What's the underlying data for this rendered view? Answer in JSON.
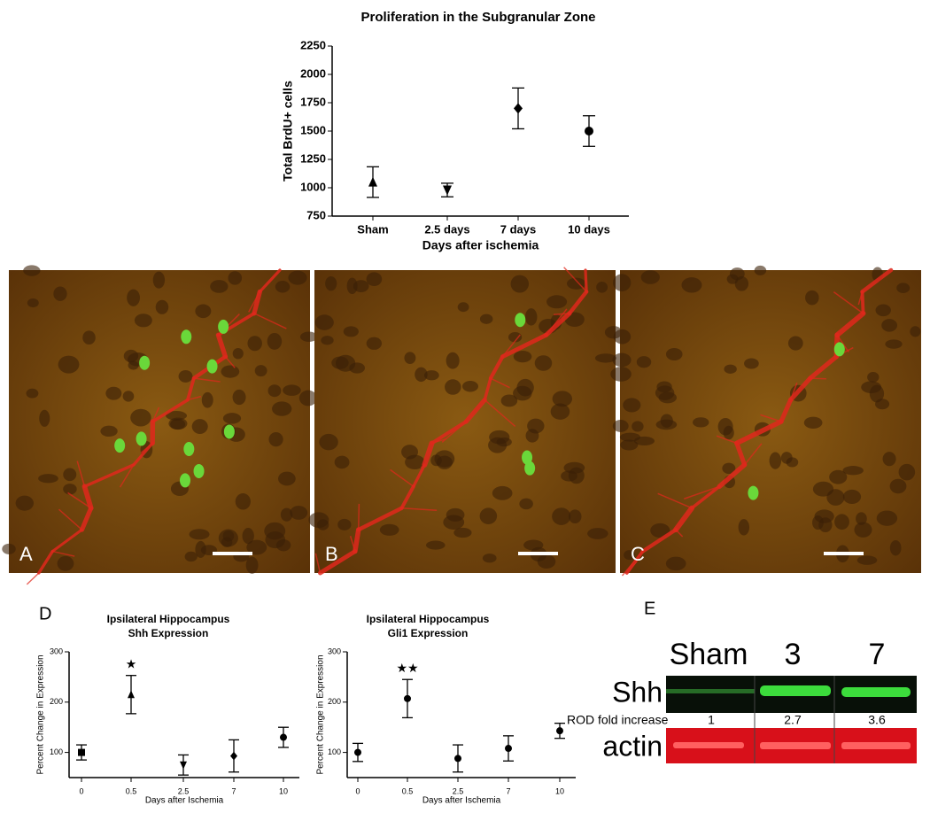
{
  "chart_data": [
    {
      "type": "errorbar",
      "title": "Proliferation in the Subgranular Zone",
      "xlabel": "Days after ischemia",
      "ylabel": "Total BrdU+ cells",
      "categories": [
        "Sham",
        "2.5 days",
        "7 days",
        "10 days"
      ],
      "values": [
        1050,
        980,
        1700,
        1500
      ],
      "errors": [
        135,
        60,
        180,
        135
      ],
      "markers": [
        "triangle",
        "triangle-down",
        "diamond",
        "circle"
      ],
      "color": "#000000",
      "ylim": [
        750,
        2250
      ],
      "yticks": [
        750,
        1000,
        1250,
        1500,
        1750,
        2000,
        2250
      ]
    },
    {
      "type": "errorbar",
      "title": [
        "Ipsilateral Hippocampus",
        "Shh Expression"
      ],
      "xlabel": "Days after Ischemia",
      "ylabel": "Percent Change in Expression",
      "categories": [
        "0",
        "0.5",
        "2.5",
        "7",
        "10"
      ],
      "values": [
        100,
        215,
        75,
        93,
        130
      ],
      "errors": [
        15,
        38,
        20,
        32,
        20
      ],
      "markers": [
        "square",
        "triangle",
        "triangle-down",
        "diamond",
        "circle"
      ],
      "color": "#000000",
      "ylim": [
        50,
        300
      ],
      "yticks": [
        100,
        200,
        300
      ],
      "annotations": [
        {
          "category": 1,
          "text": "★"
        }
      ]
    },
    {
      "type": "errorbar",
      "title": [
        "Ipsilateral Hippocampus",
        "Gli1 Expression"
      ],
      "xlabel": "Days after Ischemia",
      "ylabel": "Percent Change in Expression",
      "categories": [
        "0",
        "0.5",
        "2.5",
        "7",
        "10"
      ],
      "values": [
        100,
        207,
        88,
        108,
        143
      ],
      "errors": [
        18,
        38,
        27,
        25,
        15
      ],
      "markers": [
        "circle",
        "circle",
        "circle",
        "circle",
        "circle"
      ],
      "color": "#000000",
      "ylim": [
        50,
        300
      ],
      "yticks": [
        100,
        200,
        300
      ],
      "annotations": [
        {
          "category": 1,
          "text": "★★"
        }
      ]
    }
  ],
  "panels": {
    "micrographs": [
      "A",
      "B",
      "C"
    ],
    "graphs": "D",
    "blot": "E"
  },
  "blot": {
    "lanes": [
      "Sham",
      "3",
      "7"
    ],
    "rows": [
      "Shh",
      "actin"
    ],
    "rod_label": "ROD fold increase",
    "rod_values": [
      1,
      2.7,
      3.6
    ]
  }
}
